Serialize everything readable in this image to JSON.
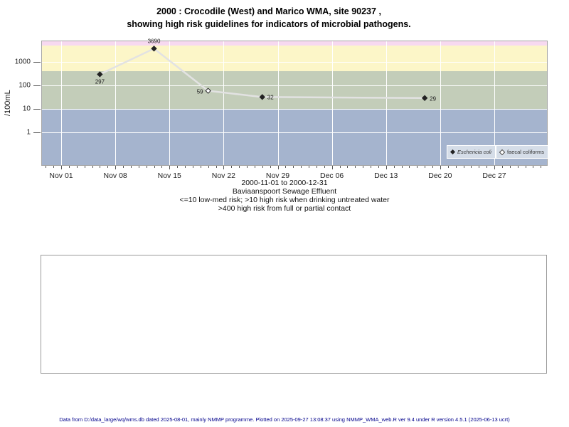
{
  "page": {
    "footer": "Data from D:/data_large/wq/wms.db dated 2025-08-01, mainly NMMP programme. Plotted on 2025-09-27 13:08:37 using NMMP_WMA_web.R ver 9.4 under R version 4.5.1 (2025-06-13 ucrt)"
  },
  "chart_data": {
    "type": "line",
    "title_lines": [
      "2000 : Crocodile (West) and Marico WMA, site 90237 ,",
      "showing high risk guidelines for indicators of microbial pathogens."
    ],
    "ylabel": "/100mL",
    "y_scale": "log10",
    "x_axis": {
      "start": "2000-11-01",
      "end": "2000-12-31",
      "major_ticks": [
        {
          "label": "Nov 01",
          "day": 0
        },
        {
          "label": "Nov 08",
          "day": 7
        },
        {
          "label": "Nov 15",
          "day": 14
        },
        {
          "label": "Nov 22",
          "day": 21
        },
        {
          "label": "Nov 29",
          "day": 28
        },
        {
          "label": "Dec 06",
          "day": 35
        },
        {
          "label": "Dec 13",
          "day": 42
        },
        {
          "label": "Dec 20",
          "day": 49
        },
        {
          "label": "Dec 27",
          "day": 56
        }
      ],
      "minor_day_min": -2,
      "minor_day_max": 62
    },
    "y_axis": {
      "ticks": [
        {
          "value": 1000,
          "label": "1000"
        },
        {
          "value": 100,
          "label": "100"
        },
        {
          "value": 10,
          "label": "10"
        },
        {
          "value": 1,
          "label": "1"
        }
      ],
      "range": [
        0.04,
        7500
      ],
      "grid": true
    },
    "bands": [
      {
        "name": "extreme",
        "lo": 5000,
        "hi": null,
        "color": "#f7d9f0"
      },
      {
        "name": "high-risk-contact-gt-400",
        "lo": 400,
        "hi": 5000,
        "color": "#fcf6c8"
      },
      {
        "name": "high-risk-drinking-gt-10",
        "lo": 10,
        "hi": 400,
        "color": "#c3cdb9"
      },
      {
        "name": "low-med-risk-le-10",
        "lo": null,
        "hi": 10,
        "color": "#a5b4ce"
      }
    ],
    "series": [
      {
        "name": "Eschericia coli",
        "marker": "filled-diamond",
        "points": [
          {
            "date": "2000-11-06",
            "day": 5,
            "value": 297,
            "label": "297",
            "label_pos": "below"
          },
          {
            "date": "2000-11-13",
            "day": 12,
            "value": 3690,
            "label": "3690",
            "label_pos": "above"
          },
          {
            "date": "2000-11-27",
            "day": 26,
            "value": 32,
            "label": "32",
            "label_pos": "right"
          },
          {
            "date": "2000-12-18",
            "day": 47,
            "value": 29,
            "label": "29",
            "label_pos": "right"
          }
        ]
      },
      {
        "name": "faecal coliforms",
        "marker": "open-diamond",
        "points": [
          {
            "date": "2000-11-20",
            "day": 19,
            "value": 59,
            "label": "59",
            "label_pos": "left"
          }
        ]
      }
    ],
    "connect_all_points": true,
    "legend": {
      "position": "bottom-right",
      "entries": [
        {
          "label": "Eschericia coli",
          "marker": "filled-diamond"
        },
        {
          "label": "faecal coliforms",
          "marker": "open-diamond"
        }
      ]
    },
    "captions": [
      "2000-11-01 to 2000-12-31",
      "Baviaanspoort Sewage Effluent",
      "<=10 low-med risk; >10 high risk when drinking untreated water",
      ">400 high risk from full or partial contact"
    ],
    "colors": {
      "line": "#e2e2e2",
      "marker": "#222222",
      "gridline": "#ffffff",
      "legend_bg": "#d5dde8",
      "footer_text": "#00008b"
    }
  }
}
